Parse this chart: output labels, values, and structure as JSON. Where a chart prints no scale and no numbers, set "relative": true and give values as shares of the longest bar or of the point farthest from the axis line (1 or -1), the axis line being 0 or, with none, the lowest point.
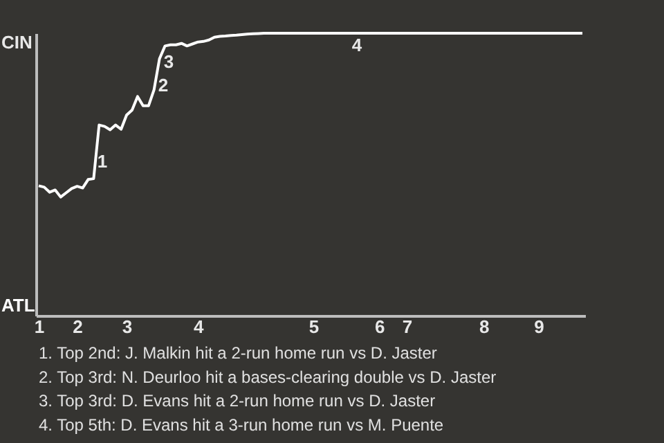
{
  "chart_data": {
    "type": "line",
    "relative": true,
    "categories": [
      "1",
      null,
      null,
      null,
      null,
      null,
      null,
      "2",
      null,
      null,
      null,
      null,
      null,
      null,
      null,
      null,
      "3",
      null,
      null,
      null,
      null,
      null,
      null,
      null,
      null,
      null,
      null,
      null,
      null,
      "4",
      null,
      null,
      null,
      null,
      null,
      null,
      null,
      null,
      null,
      null,
      null,
      null,
      null,
      null,
      null,
      null,
      null,
      null,
      null,
      null,
      "5",
      null,
      null,
      null,
      null,
      null,
      null,
      null,
      null,
      null,
      null,
      null,
      "6",
      null,
      null,
      null,
      null,
      "7",
      null,
      null,
      null,
      null,
      null,
      null,
      null,
      null,
      null,
      null,
      null,
      null,
      null,
      "8",
      null,
      null,
      null,
      null,
      null,
      null,
      null,
      null,
      null,
      "9",
      null,
      null,
      null,
      null,
      null,
      null,
      null,
      null
    ],
    "series": [
      {
        "color": "#ffffff",
        "values": [
          0.46,
          0.455,
          0.437,
          0.445,
          0.42,
          0.435,
          0.45,
          0.458,
          0.452,
          0.482,
          0.485,
          0.675,
          0.67,
          0.658,
          0.675,
          0.66,
          0.71,
          0.728,
          0.776,
          0.743,
          0.743,
          0.8,
          0.91,
          0.955,
          0.959,
          0.959,
          0.964,
          0.955,
          0.962,
          0.969,
          0.971,
          0.976,
          0.986,
          0.989,
          0.99,
          0.992,
          0.993,
          0.995,
          0.997,
          0.998,
          0.999,
          1,
          1,
          1,
          1,
          1,
          1,
          1,
          1,
          1,
          1,
          1,
          1,
          1,
          1,
          1,
          1,
          1,
          1,
          1,
          1,
          1,
          1,
          1,
          1,
          1,
          1,
          1,
          1,
          1,
          1,
          1,
          1,
          1,
          1,
          1,
          1,
          1,
          1,
          1,
          1,
          1,
          1,
          1,
          1,
          1,
          1,
          1,
          1,
          1,
          1,
          1,
          1,
          1,
          1,
          1,
          1,
          1,
          1,
          1
        ]
      }
    ],
    "marker": "none",
    "line_style": "solid",
    "annotations": [
      "CIN",
      "ATL",
      "1",
      "2",
      "3",
      "4",
      "1. Top 2nd: J. Malkin hit a 2-run home run vs D. Jaster",
      "2. Top 3rd: N. Deurloo hit a bases-clearing double vs D. Jaster",
      "3. Top 3rd: D. Evans hit a 2-run home run vs D. Jaster",
      "4. Top 5th: D. Evans hit a 3-run home run vs M. Puente"
    ]
  }
}
